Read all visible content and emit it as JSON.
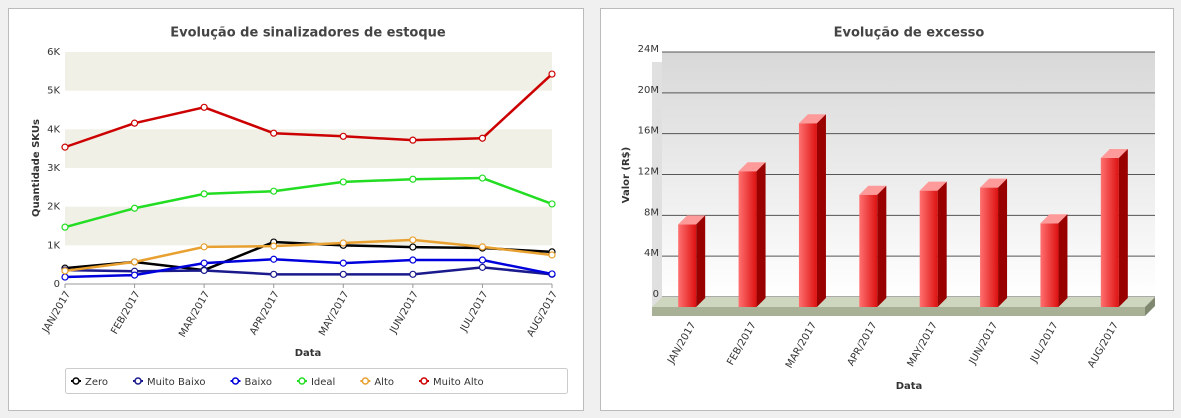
{
  "chart_data": [
    {
      "type": "line",
      "title": "Evolução de sinalizadores de estoque",
      "x_label": "Data",
      "y_label": "Quantidade SKUs",
      "categories": [
        "JAN/2017",
        "FEB/2017",
        "MAR/2017",
        "APR/2017",
        "MAY/2017",
        "JUN/2017",
        "JUL/2017",
        "AUG/2017"
      ],
      "ylim": [
        0,
        6000
      ],
      "yticks": [
        0,
        {
          "value": 1000,
          "label": "1K"
        },
        {
          "value": 2000,
          "label": "2K"
        },
        {
          "value": 3000,
          "label": "3K"
        },
        {
          "value": 4000,
          "label": "4K"
        },
        {
          "value": 5000,
          "label": "5K"
        },
        {
          "value": 6000,
          "label": "6K"
        }
      ],
      "grid": true,
      "legend": "bottom",
      "series": [
        {
          "name": "Zero",
          "color": "#000000",
          "values": [
            410,
            570,
            360,
            1085,
            1000,
            955,
            930,
            830
          ]
        },
        {
          "name": "Muito Baixo",
          "color": "#1a1a8c",
          "values": [
            360,
            330,
            350,
            250,
            250,
            250,
            430,
            250
          ]
        },
        {
          "name": "Baixo",
          "color": "#0000dd",
          "values": [
            180,
            230,
            540,
            640,
            540,
            620,
            620,
            260
          ]
        },
        {
          "name": "Ideal",
          "color": "#22dd22",
          "values": [
            1470,
            1960,
            2330,
            2400,
            2640,
            2710,
            2740,
            2070
          ]
        },
        {
          "name": "Alto",
          "color": "#e8a030",
          "values": [
            340,
            570,
            960,
            980,
            1060,
            1140,
            960,
            750
          ]
        },
        {
          "name": "Muito Alto",
          "color": "#cc0000",
          "values": [
            3540,
            4160,
            4570,
            3900,
            3820,
            3720,
            3770,
            5430
          ]
        }
      ]
    },
    {
      "type": "bar",
      "title": "Evolução de excesso",
      "x_label": "Data",
      "y_label": "Valor (R$)",
      "categories": [
        "JAN/2017",
        "FEB/2017",
        "MAR/2017",
        "APR/2017",
        "MAY/2017",
        "JUN/2017",
        "JUL/2017",
        "AUG/2017"
      ],
      "values": [
        8100000,
        13300000,
        18000000,
        11000000,
        11400000,
        11700000,
        8200000,
        14600000
      ],
      "color": "#dd1111",
      "ylim": [
        0,
        24000000
      ],
      "yticks": [
        0,
        {
          "value": 4000000,
          "label": "4M"
        },
        {
          "value": 8000000,
          "label": "8M"
        },
        {
          "value": 12000000,
          "label": "12M"
        },
        {
          "value": 16000000,
          "label": "16M"
        },
        {
          "value": 20000000,
          "label": "20M"
        },
        {
          "value": 24000000,
          "label": "24M"
        }
      ],
      "grid": true
    }
  ]
}
